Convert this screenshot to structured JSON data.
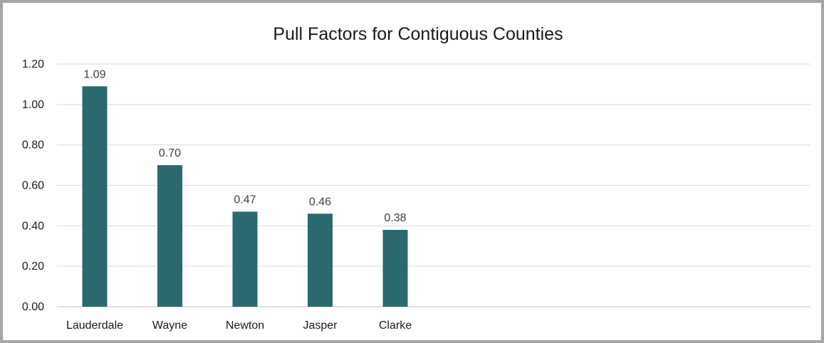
{
  "chart_data": {
    "type": "bar",
    "title": "Pull Factors for Contiguous Counties",
    "categories": [
      "Lauderdale",
      "Wayne",
      "Newton",
      "Jasper",
      "Clarke"
    ],
    "values": [
      1.09,
      0.7,
      0.47,
      0.46,
      0.38
    ],
    "data_labels": [
      "1.09",
      "0.70",
      "0.47",
      "0.46",
      "0.38"
    ],
    "y_ticks": [
      0.0,
      0.2,
      0.4,
      0.6,
      0.8,
      1.0,
      1.2
    ],
    "y_tick_labels": [
      "0.00",
      "0.20",
      "0.40",
      "0.60",
      "0.80",
      "1.00",
      "1.20"
    ],
    "xlabel": "",
    "ylabel": "",
    "ylim": [
      0,
      1.2
    ],
    "grid": true,
    "legend": "none",
    "colors": {
      "bar": "#2a6a6e",
      "grid": "#d9d9d9",
      "border": "#a6a6a6"
    }
  }
}
